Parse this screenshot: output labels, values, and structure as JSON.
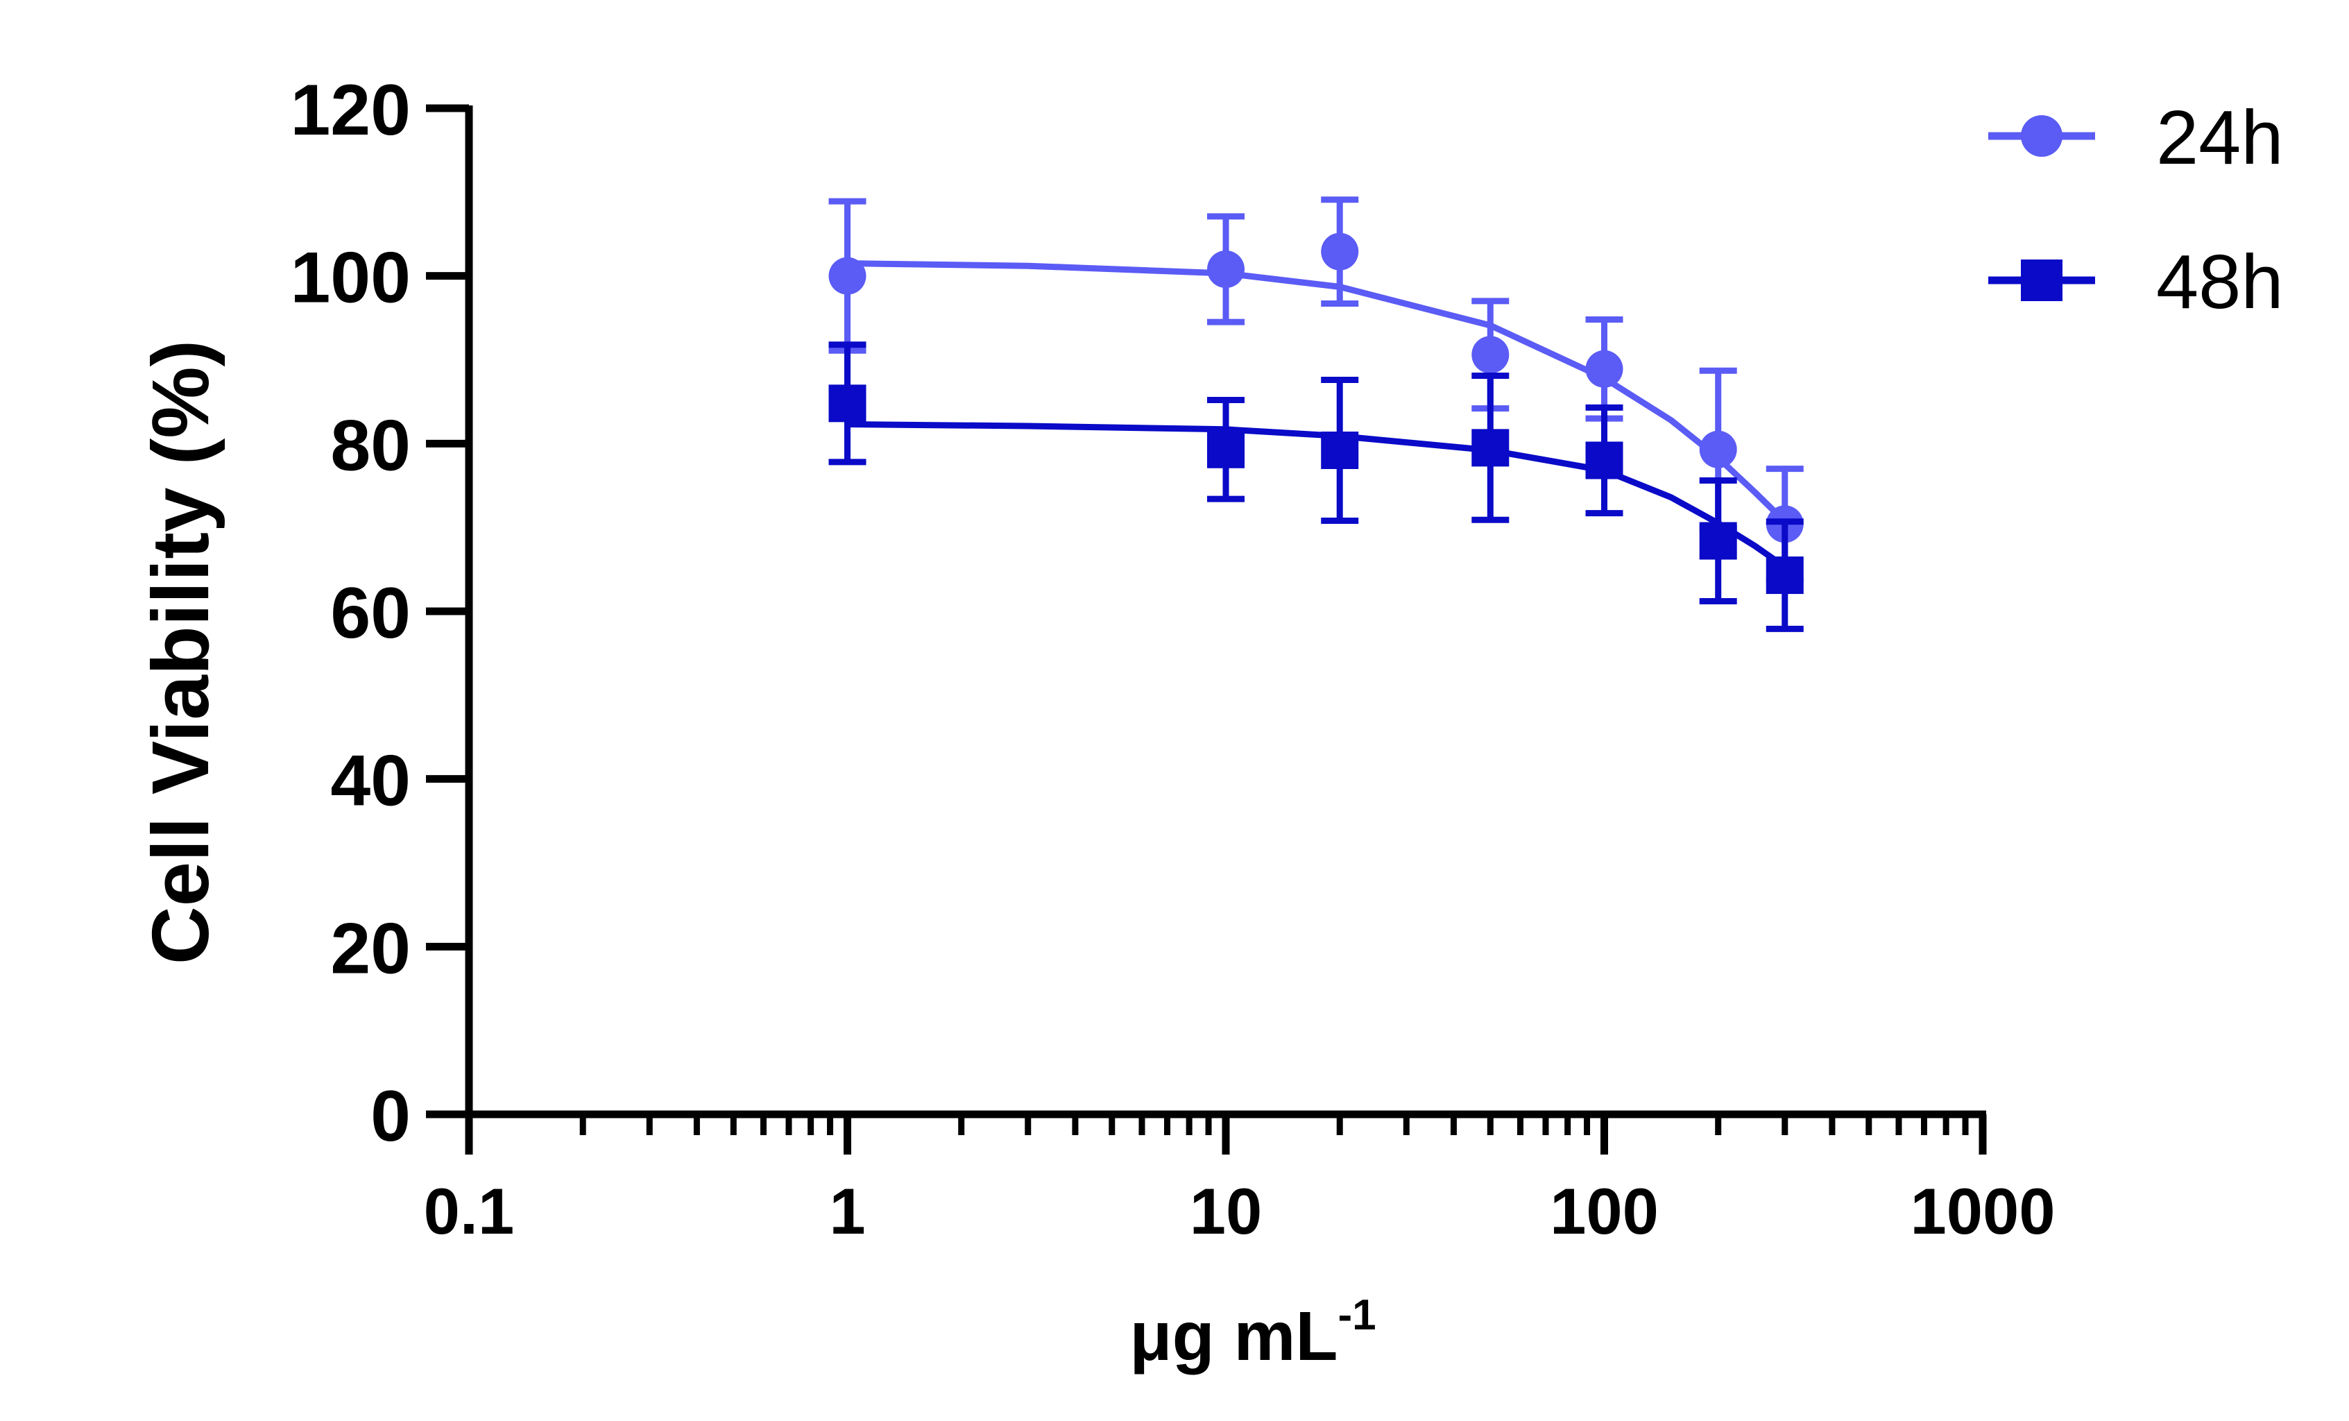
{
  "chart_data": {
    "type": "scatter",
    "title": "",
    "xlabel": {
      "base": "μg mL",
      "superscript": "-1"
    },
    "ylabel": "Cell Viability (%)",
    "xscale": "log",
    "xlim": [
      0.1,
      1000
    ],
    "ylim": [
      0,
      120
    ],
    "xticks": [
      0.1,
      1,
      10,
      100,
      1000
    ],
    "xtick_labels": [
      "0.1",
      "1",
      "10",
      "100",
      "1000"
    ],
    "yticks": [
      0,
      20,
      40,
      60,
      80,
      100,
      120
    ],
    "ytick_labels": [
      "0",
      "20",
      "40",
      "60",
      "80",
      "100",
      "120"
    ],
    "grid": false,
    "legend_position": "top-right",
    "series": [
      {
        "name": "24h",
        "marker": "circle",
        "color": "#5B5BF5",
        "x": [
          1,
          10,
          20,
          50,
          100,
          200,
          300
        ],
        "y": [
          100,
          100.8,
          102.9,
          90.6,
          88.9,
          79.3,
          70.4
        ],
        "error": [
          8.9,
          6.3,
          6.2,
          6.4,
          5.9,
          9.4,
          6.6
        ],
        "fit": [
          [
            1,
            101.5
          ],
          [
            3,
            101.2
          ],
          [
            10,
            100.3
          ],
          [
            20,
            98.7
          ],
          [
            50,
            94.1
          ],
          [
            100,
            87.8
          ],
          [
            150,
            82.8
          ],
          [
            200,
            78.3
          ],
          [
            250,
            74.2
          ],
          [
            300,
            70.7
          ]
        ]
      },
      {
        "name": "48h",
        "marker": "square",
        "color": "#0A0AC8",
        "x": [
          1,
          10,
          20,
          50,
          100,
          200,
          300
        ],
        "y": [
          84.8,
          79.3,
          79.2,
          79.5,
          78.0,
          68.4,
          64.3
        ],
        "error": [
          7.0,
          5.9,
          8.4,
          8.6,
          6.3,
          7.2,
          6.4
        ],
        "fit": [
          [
            1,
            82.3
          ],
          [
            3,
            82.1
          ],
          [
            10,
            81.7
          ],
          [
            20,
            80.9
          ],
          [
            50,
            79.2
          ],
          [
            100,
            76.8
          ],
          [
            150,
            73.6
          ],
          [
            200,
            70.5
          ],
          [
            250,
            67.8
          ],
          [
            300,
            65.3
          ]
        ]
      }
    ]
  }
}
